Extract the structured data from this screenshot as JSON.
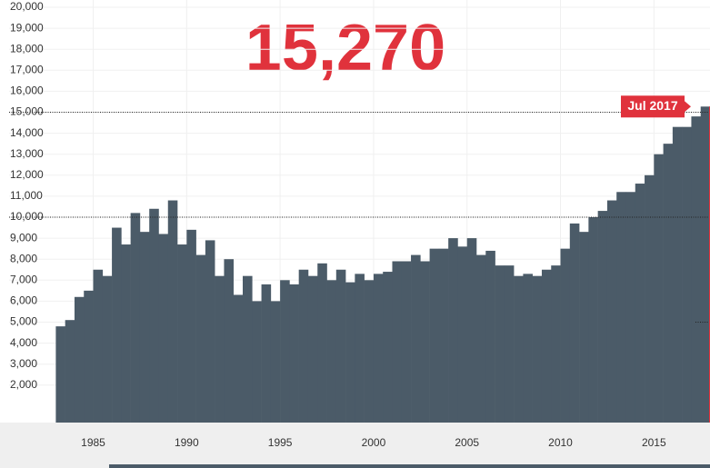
{
  "chart_data": {
    "type": "bar",
    "headline": "15,270",
    "annotation": "Jul 2017",
    "color": "#4b5b68",
    "highlight_color": "#e0323c",
    "x": [
      1983.0,
      1983.5,
      1984.0,
      1984.5,
      1985.0,
      1985.5,
      1986.0,
      1986.5,
      1987.0,
      1987.5,
      1988.0,
      1988.5,
      1989.0,
      1989.5,
      1990.0,
      1990.5,
      1991.0,
      1991.5,
      1992.0,
      1992.5,
      1993.0,
      1993.5,
      1994.0,
      1994.5,
      1995.0,
      1995.5,
      1996.0,
      1996.5,
      1997.0,
      1997.5,
      1998.0,
      1998.5,
      1999.0,
      1999.5,
      2000.0,
      2000.5,
      2001.0,
      2001.5,
      2002.0,
      2002.5,
      2003.0,
      2003.5,
      2004.0,
      2004.5,
      2005.0,
      2005.5,
      2006.0,
      2006.5,
      2007.0,
      2007.5,
      2008.0,
      2008.5,
      2009.0,
      2009.5,
      2010.0,
      2010.5,
      2011.0,
      2011.5,
      2012.0,
      2012.5,
      2013.0,
      2013.5,
      2014.0,
      2014.5,
      2015.0,
      2015.5,
      2016.0,
      2016.5,
      2017.0,
      2017.5
    ],
    "values": [
      4800,
      5100,
      6200,
      6500,
      7500,
      7200,
      9500,
      8700,
      10200,
      9300,
      10400,
      9200,
      10800,
      8700,
      9400,
      8200,
      8900,
      7200,
      8000,
      6300,
      7200,
      6000,
      6800,
      6000,
      7000,
      6800,
      7500,
      7200,
      7800,
      7000,
      7500,
      6900,
      7300,
      7000,
      7300,
      7400,
      7900,
      7900,
      8200,
      7900,
      8500,
      8500,
      9000,
      8600,
      9000,
      8200,
      8400,
      7700,
      7700,
      7200,
      7300,
      7200,
      7500,
      7700,
      8500,
      9700,
      9300,
      10000,
      10300,
      10800,
      11200,
      11200,
      11600,
      12000,
      13000,
      13500,
      14300,
      14300,
      14800,
      15270
    ],
    "xlim": [
      1980.5,
      2018
    ],
    "ylim": [
      0,
      20000
    ],
    "xticks": [
      1985,
      1990,
      1995,
      2000,
      2005,
      2010,
      2015
    ],
    "yticks": [
      {
        "value": 2000,
        "label": "2,000"
      },
      {
        "value": 3000,
        "label": "3,000"
      },
      {
        "value": 4000,
        "label": "4,000"
      },
      {
        "value": 5000,
        "label": "5,000"
      },
      {
        "value": 6000,
        "label": "6,000"
      },
      {
        "value": 7000,
        "label": "7,000"
      },
      {
        "value": 8000,
        "label": "8,000"
      },
      {
        "value": 9000,
        "label": "9,000"
      },
      {
        "value": 10000,
        "label": "10,000"
      },
      {
        "value": 11000,
        "label": "11,000"
      },
      {
        "value": 12000,
        "label": "12,000"
      },
      {
        "value": 13000,
        "label": "13,000"
      },
      {
        "value": 14000,
        "label": "14,000"
      },
      {
        "value": 15000,
        "label": "15,000"
      },
      {
        "value": 16000,
        "label": "16,000"
      },
      {
        "value": 17000,
        "label": "17,000"
      },
      {
        "value": 18000,
        "label": "18,000"
      },
      {
        "value": 19000,
        "label": "19,000"
      },
      {
        "value": 20000,
        "label": "20,000"
      }
    ],
    "dotted_lines": [
      5000,
      10000,
      15000
    ]
  }
}
